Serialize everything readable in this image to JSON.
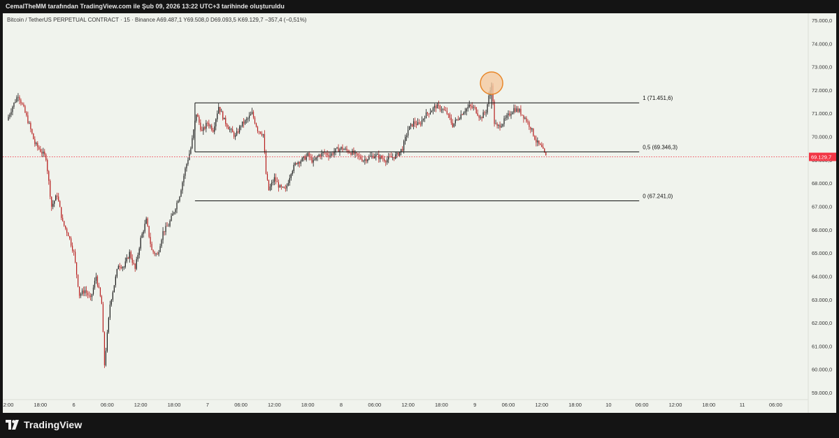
{
  "header": {
    "attribution": "CemalTheMM tarafından TradingView.com ile Şub 09, 2026 13:22 UTC+3 tarihinde oluşturuldu"
  },
  "footer": {
    "brand": "TradingView",
    "logo_icon": "tradingview-logo-icon"
  },
  "colors": {
    "background": "#f0f3ed",
    "frame": "#141414",
    "candle_up": "#1a1a1a",
    "candle_down": "#b71c1c",
    "last_price": "#f23645",
    "highlight_fill": "#f5c9a0",
    "highlight_stroke": "#e8872a"
  },
  "chart_data": {
    "type": "candlestick",
    "legend": {
      "symbol": "Bitcoin / TetherUS PERPETUAL CONTRACT · 15 · Binance",
      "open_label": "A",
      "open": "69.487,1",
      "high_label": "Y",
      "high": "69.508,0",
      "low_label": "D",
      "low": "69.093,5",
      "close_label": "K",
      "close": "69.129,7",
      "change": "−357,4 (−0,51%)"
    },
    "y_axis": {
      "range": [
        58700,
        75300
      ],
      "ticks": [
        "59.000,0",
        "60.000,0",
        "61.000,0",
        "62.000,0",
        "63.000,0",
        "64.000,0",
        "65.000,0",
        "66.000,0",
        "67.000,0",
        "68.000,0",
        "69.000,0",
        "70.000,0",
        "71.000,0",
        "72.000,0",
        "73.000,0",
        "74.000,0",
        "75.000,0"
      ],
      "tick_values": [
        59000,
        60000,
        61000,
        62000,
        63000,
        64000,
        65000,
        66000,
        67000,
        68000,
        69000,
        70000,
        71000,
        72000,
        73000,
        74000,
        75000
      ]
    },
    "x_axis": {
      "start": "2026-02-05T12:00",
      "end": "2026-02-10T12:00",
      "ticks": [
        {
          "t": "2026-02-05T12:00",
          "label": "12:00"
        },
        {
          "t": "2026-02-05T18:00",
          "label": "18:00"
        },
        {
          "t": "2026-02-06T00:00",
          "label": "6"
        },
        {
          "t": "2026-02-06T06:00",
          "label": "06:00"
        },
        {
          "t": "2026-02-06T12:00",
          "label": "12:00"
        },
        {
          "t": "2026-02-06T18:00",
          "label": "18:00"
        },
        {
          "t": "2026-02-07T00:00",
          "label": "7"
        },
        {
          "t": "2026-02-07T06:00",
          "label": "06:00"
        },
        {
          "t": "2026-02-07T12:00",
          "label": "12:00"
        },
        {
          "t": "2026-02-07T18:00",
          "label": "18:00"
        },
        {
          "t": "2026-02-08T00:00",
          "label": "8"
        },
        {
          "t": "2026-02-08T06:00",
          "label": "06:00"
        },
        {
          "t": "2026-02-08T12:00",
          "label": "12:00"
        },
        {
          "t": "2026-02-08T18:00",
          "label": "18:00"
        },
        {
          "t": "2026-02-09T00:00",
          "label": "9"
        },
        {
          "t": "2026-02-09T06:00",
          "label": "06:00"
        },
        {
          "t": "2026-02-09T12:00",
          "label": "12:00"
        },
        {
          "t": "2026-02-09T18:00",
          "label": "18:00"
        },
        {
          "t": "2026-02-10T00:00",
          "label": "10"
        },
        {
          "t": "2026-02-10T06:00",
          "label": "06:00"
        },
        {
          "t": "2026-02-10T12:00",
          "label": "12:00"
        },
        {
          "t": "2026-02-10T18:00",
          "label": "18:00"
        },
        {
          "t": "2026-02-11T00:00",
          "label": "11"
        },
        {
          "t": "2026-02-11T06:00",
          "label": "06:00"
        },
        {
          "t": "2026-02-11T12:00",
          "label": "12:0"
        }
      ]
    },
    "price_path": [
      {
        "t": "2026-02-05T12:00",
        "p": 70700
      },
      {
        "t": "2026-02-05T13:00",
        "p": 71300
      },
      {
        "t": "2026-02-05T14:00",
        "p": 71800
      },
      {
        "t": "2026-02-05T15:00",
        "p": 71200
      },
      {
        "t": "2026-02-05T16:00",
        "p": 70500
      },
      {
        "t": "2026-02-05T17:00",
        "p": 69700
      },
      {
        "t": "2026-02-05T18:00",
        "p": 69400
      },
      {
        "t": "2026-02-05T19:00",
        "p": 69100
      },
      {
        "t": "2026-02-05T20:00",
        "p": 67000
      },
      {
        "t": "2026-02-05T21:00",
        "p": 67500
      },
      {
        "t": "2026-02-05T22:00",
        "p": 66300
      },
      {
        "t": "2026-02-05T23:00",
        "p": 65800
      },
      {
        "t": "2026-02-06T00:00",
        "p": 65000
      },
      {
        "t": "2026-02-06T01:00",
        "p": 63200
      },
      {
        "t": "2026-02-06T02:00",
        "p": 63400
      },
      {
        "t": "2026-02-06T03:00",
        "p": 63000
      },
      {
        "t": "2026-02-06T04:00",
        "p": 64000
      },
      {
        "t": "2026-02-06T05:00",
        "p": 62800
      },
      {
        "t": "2026-02-06T05:30",
        "p": 60200
      },
      {
        "t": "2026-02-06T06:30",
        "p": 62800
      },
      {
        "t": "2026-02-06T08:00",
        "p": 64500
      },
      {
        "t": "2026-02-06T09:00",
        "p": 64400
      },
      {
        "t": "2026-02-06T10:00",
        "p": 65000
      },
      {
        "t": "2026-02-06T11:00",
        "p": 64300
      },
      {
        "t": "2026-02-06T12:00",
        "p": 65600
      },
      {
        "t": "2026-02-06T13:00",
        "p": 66400
      },
      {
        "t": "2026-02-06T14:00",
        "p": 65100
      },
      {
        "t": "2026-02-06T15:00",
        "p": 64900
      },
      {
        "t": "2026-02-06T16:00",
        "p": 65900
      },
      {
        "t": "2026-02-06T17:00",
        "p": 66200
      },
      {
        "t": "2026-02-06T18:00",
        "p": 66800
      },
      {
        "t": "2026-02-06T19:00",
        "p": 67500
      },
      {
        "t": "2026-02-06T20:00",
        "p": 68600
      },
      {
        "t": "2026-02-06T21:00",
        "p": 69500
      },
      {
        "t": "2026-02-06T22:00",
        "p": 71000
      },
      {
        "t": "2026-02-06T23:00",
        "p": 70200
      },
      {
        "t": "2026-02-07T00:00",
        "p": 70600
      },
      {
        "t": "2026-02-07T01:00",
        "p": 70300
      },
      {
        "t": "2026-02-07T02:00",
        "p": 71300
      },
      {
        "t": "2026-02-07T03:00",
        "p": 70700
      },
      {
        "t": "2026-02-07T04:00",
        "p": 70300
      },
      {
        "t": "2026-02-07T05:00",
        "p": 70000
      },
      {
        "t": "2026-02-07T06:00",
        "p": 70500
      },
      {
        "t": "2026-02-07T07:00",
        "p": 70700
      },
      {
        "t": "2026-02-07T08:00",
        "p": 71000
      },
      {
        "t": "2026-02-07T09:00",
        "p": 70300
      },
      {
        "t": "2026-02-07T10:00",
        "p": 70100
      },
      {
        "t": "2026-02-07T10:30",
        "p": 68400
      },
      {
        "t": "2026-02-07T11:00",
        "p": 67700
      },
      {
        "t": "2026-02-07T12:00",
        "p": 68200
      },
      {
        "t": "2026-02-07T13:00",
        "p": 67800
      },
      {
        "t": "2026-02-07T14:00",
        "p": 67700
      },
      {
        "t": "2026-02-07T15:00",
        "p": 68500
      },
      {
        "t": "2026-02-07T16:00",
        "p": 68900
      },
      {
        "t": "2026-02-07T17:00",
        "p": 69000
      },
      {
        "t": "2026-02-07T18:00",
        "p": 69200
      },
      {
        "t": "2026-02-07T19:00",
        "p": 68900
      },
      {
        "t": "2026-02-07T20:00",
        "p": 69200
      },
      {
        "t": "2026-02-07T21:00",
        "p": 69300
      },
      {
        "t": "2026-02-07T22:00",
        "p": 69200
      },
      {
        "t": "2026-02-07T23:00",
        "p": 69400
      },
      {
        "t": "2026-02-08T00:00",
        "p": 69500
      },
      {
        "t": "2026-02-08T02:00",
        "p": 69300
      },
      {
        "t": "2026-02-08T04:00",
        "p": 69000
      },
      {
        "t": "2026-02-08T06:00",
        "p": 69200
      },
      {
        "t": "2026-02-08T08:00",
        "p": 69000
      },
      {
        "t": "2026-02-08T10:00",
        "p": 69200
      },
      {
        "t": "2026-02-08T11:00",
        "p": 69500
      },
      {
        "t": "2026-02-08T12:00",
        "p": 70300
      },
      {
        "t": "2026-02-08T13:00",
        "p": 70600
      },
      {
        "t": "2026-02-08T14:00",
        "p": 70500
      },
      {
        "t": "2026-02-08T15:00",
        "p": 70900
      },
      {
        "t": "2026-02-08T16:00",
        "p": 71100
      },
      {
        "t": "2026-02-08T17:00",
        "p": 71300
      },
      {
        "t": "2026-02-08T18:00",
        "p": 71200
      },
      {
        "t": "2026-02-08T19:00",
        "p": 71000
      },
      {
        "t": "2026-02-08T20:00",
        "p": 70500
      },
      {
        "t": "2026-02-08T21:00",
        "p": 70800
      },
      {
        "t": "2026-02-08T22:00",
        "p": 71100
      },
      {
        "t": "2026-02-08T23:00",
        "p": 71300
      },
      {
        "t": "2026-02-09T00:00",
        "p": 71200
      },
      {
        "t": "2026-02-09T01:00",
        "p": 70800
      },
      {
        "t": "2026-02-09T02:00",
        "p": 71100
      },
      {
        "t": "2026-02-09T03:00",
        "p": 72300
      },
      {
        "t": "2026-02-09T03:30",
        "p": 70600
      },
      {
        "t": "2026-02-09T04:00",
        "p": 70400
      },
      {
        "t": "2026-02-09T05:00",
        "p": 70600
      },
      {
        "t": "2026-02-09T06:00",
        "p": 70900
      },
      {
        "t": "2026-02-09T07:00",
        "p": 71200
      },
      {
        "t": "2026-02-09T08:00",
        "p": 71100
      },
      {
        "t": "2026-02-09T09:00",
        "p": 70800
      },
      {
        "t": "2026-02-09T10:00",
        "p": 70400
      },
      {
        "t": "2026-02-09T11:00",
        "p": 69800
      },
      {
        "t": "2026-02-09T12:00",
        "p": 69500
      },
      {
        "t": "2026-02-09T12:45",
        "p": 69130
      }
    ],
    "range_box": {
      "start": "2026-02-06T21:45",
      "end": "2026-02-10T05:30",
      "lines": [
        {
          "value": 71451.6,
          "label": "1 (71.451,6)"
        },
        {
          "value": 69346.3,
          "label": "0,5 (69.346,3)"
        },
        {
          "value": 67241.0,
          "label": "0 (67.241,0)"
        }
      ]
    },
    "highlight": {
      "t": "2026-02-09T03:00",
      "value": 72300
    },
    "last_price": {
      "value": 69129.7,
      "label": "69.129,7"
    }
  }
}
